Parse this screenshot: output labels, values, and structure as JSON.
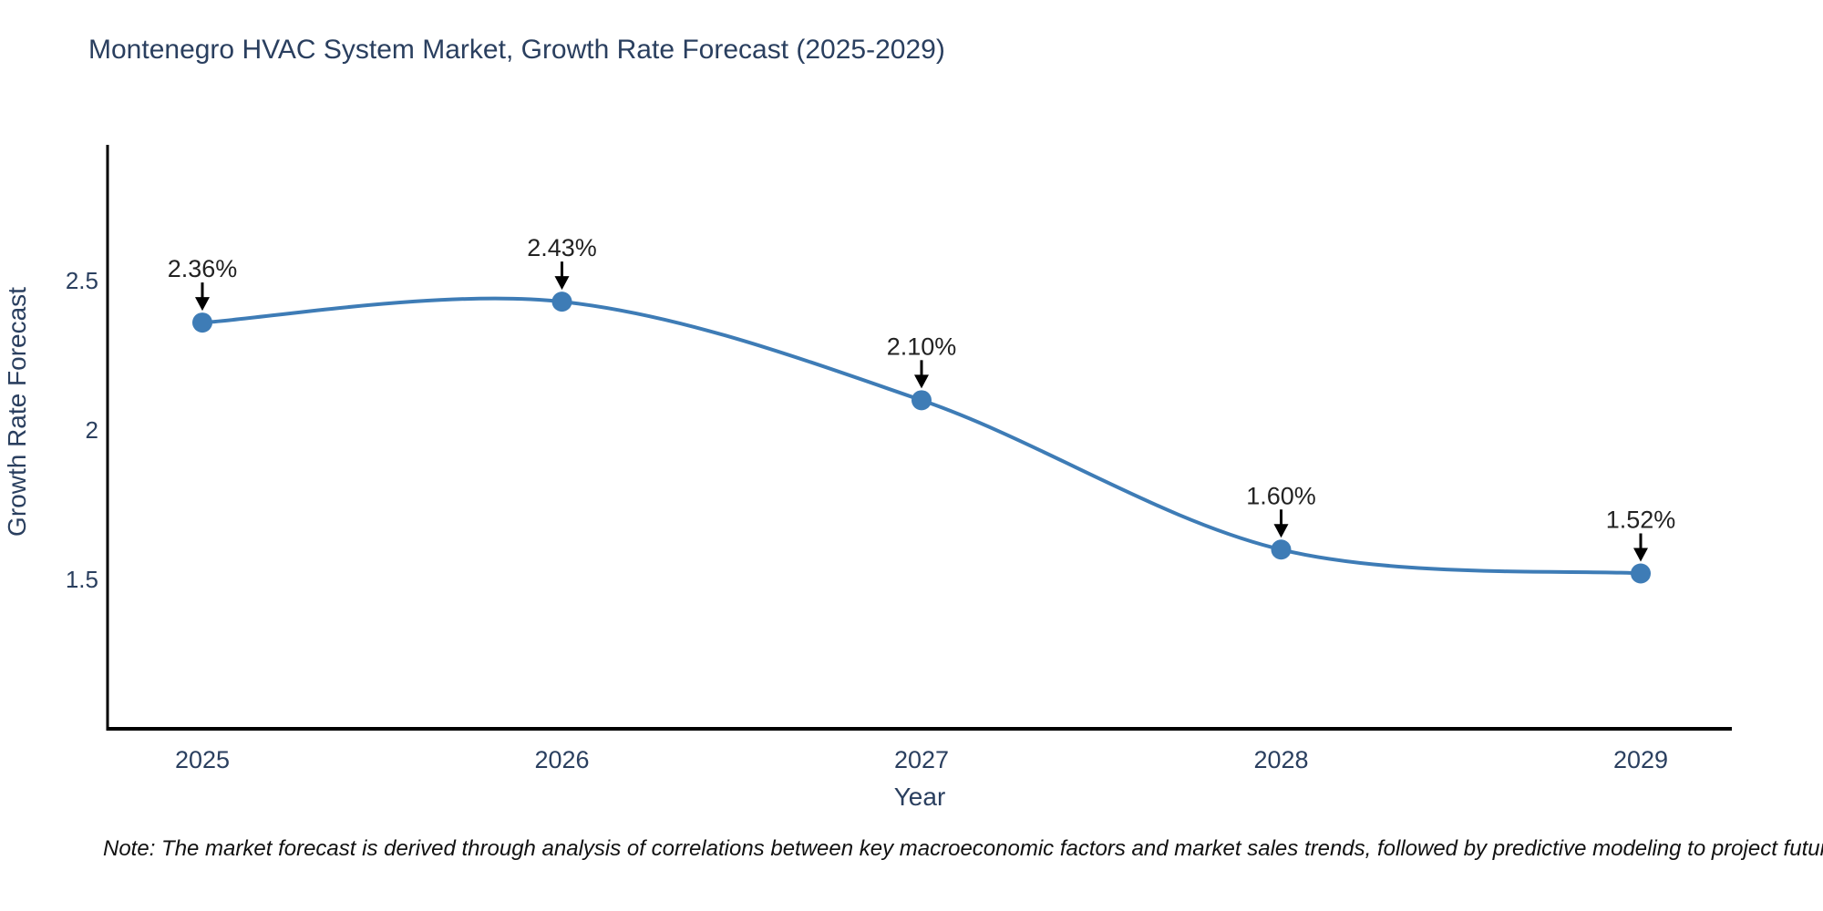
{
  "title": "Montenegro HVAC System Market, Growth Rate Forecast (2025-2029)",
  "note": "Note: The market forecast is derived through analysis of correlations between key macroeconomic factors and market sales trends, followed by predictive modeling to project future sales",
  "chart_data": {
    "type": "line",
    "title": "Montenegro HVAC System Market, Growth Rate Forecast (2025-2029)",
    "xlabel": "Year",
    "ylabel": "Growth Rate Forecast",
    "categories": [
      "2025",
      "2026",
      "2027",
      "2028",
      "2029"
    ],
    "series": [
      {
        "name": "Growth Rate Forecast",
        "values": [
          2.36,
          2.43,
          2.1,
          1.6,
          1.52
        ]
      }
    ],
    "point_labels": [
      "2.36%",
      "2.43%",
      "2.10%",
      "1.60%",
      "1.52%"
    ],
    "y_ticks": [
      "1.5",
      "2",
      "2.5"
    ],
    "y_tick_values": [
      1.5,
      2.0,
      2.5
    ],
    "ylim": [
      1.0,
      2.955
    ],
    "line_shape": "spline",
    "grid": false,
    "legend": "none",
    "colors": {
      "line": "#3e7cb6",
      "marker": "#3e7cb6",
      "arrow": "#000000",
      "annotation_text": "#222222",
      "axis_line": "#000000",
      "title_text": "#2a3f5f",
      "tick_text": "#2a3f5f",
      "background": "#ffffff"
    }
  }
}
